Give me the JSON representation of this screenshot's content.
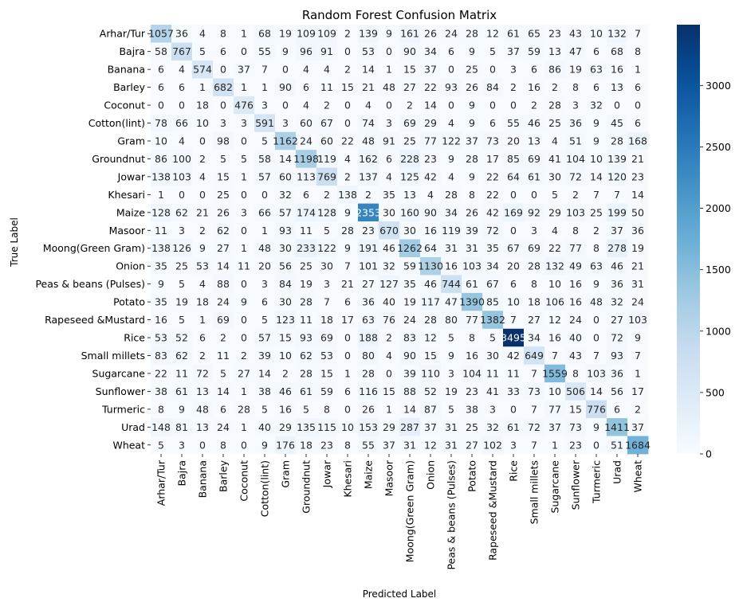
{
  "chart_data": {
    "type": "heatmap",
    "title": "Random Forest Confusion Matrix",
    "xlabel": "Predicted Label",
    "ylabel": "True Label",
    "labels": [
      "Arhar/Tur",
      "Bajra",
      "Banana",
      "Barley",
      "Coconut",
      "Cotton(lint)",
      "Gram",
      "Groundnut",
      "Jowar",
      "Khesari",
      "Maize",
      "Masoor",
      "Moong(Green Gram)",
      "Onion",
      "Peas & beans (Pulses)",
      "Potato",
      "Rapeseed &Mustard",
      "Rice",
      "Small millets",
      "Sugarcane",
      "Sunflower",
      "Turmeric",
      "Urad",
      "Wheat"
    ],
    "matrix": [
      [
        1057,
        36,
        4,
        8,
        1,
        68,
        19,
        109,
        109,
        2,
        139,
        9,
        161,
        26,
        24,
        28,
        12,
        61,
        65,
        23,
        43,
        10,
        132,
        7
      ],
      [
        58,
        767,
        5,
        6,
        0,
        55,
        9,
        96,
        91,
        0,
        53,
        0,
        90,
        34,
        6,
        9,
        5,
        37,
        59,
        13,
        47,
        6,
        68,
        8
      ],
      [
        6,
        4,
        574,
        0,
        37,
        7,
        0,
        4,
        4,
        2,
        14,
        1,
        15,
        37,
        0,
        25,
        0,
        3,
        6,
        86,
        19,
        63,
        16,
        1
      ],
      [
        6,
        6,
        1,
        682,
        1,
        1,
        90,
        6,
        11,
        15,
        21,
        48,
        27,
        22,
        93,
        26,
        84,
        2,
        16,
        2,
        8,
        6,
        13,
        6
      ],
      [
        0,
        0,
        18,
        0,
        476,
        3,
        0,
        4,
        2,
        0,
        4,
        0,
        2,
        14,
        0,
        9,
        0,
        0,
        2,
        28,
        3,
        32,
        0,
        0
      ],
      [
        78,
        66,
        10,
        3,
        3,
        591,
        3,
        60,
        67,
        0,
        74,
        3,
        69,
        29,
        4,
        9,
        6,
        55,
        46,
        25,
        36,
        9,
        45,
        6
      ],
      [
        10,
        4,
        0,
        98,
        0,
        5,
        1162,
        24,
        60,
        22,
        48,
        91,
        25,
        77,
        122,
        37,
        73,
        20,
        13,
        4,
        51,
        9,
        28,
        168
      ],
      [
        86,
        100,
        2,
        5,
        5,
        58,
        14,
        1198,
        119,
        4,
        162,
        6,
        228,
        23,
        9,
        28,
        17,
        85,
        69,
        41,
        104,
        10,
        139,
        21
      ],
      [
        138,
        103,
        4,
        15,
        1,
        57,
        60,
        113,
        769,
        2,
        137,
        4,
        125,
        42,
        4,
        9,
        22,
        64,
        61,
        30,
        72,
        14,
        120,
        23
      ],
      [
        1,
        0,
        0,
        25,
        0,
        0,
        32,
        6,
        2,
        138,
        2,
        35,
        13,
        4,
        28,
        8,
        22,
        0,
        0,
        5,
        2,
        7,
        7,
        14
      ],
      [
        128,
        62,
        21,
        26,
        3,
        66,
        57,
        174,
        128,
        9,
        2353,
        30,
        160,
        90,
        34,
        26,
        42,
        169,
        92,
        29,
        103,
        25,
        199,
        50
      ],
      [
        11,
        3,
        2,
        62,
        0,
        1,
        93,
        11,
        5,
        28,
        23,
        670,
        30,
        16,
        119,
        39,
        72,
        0,
        3,
        4,
        8,
        2,
        37,
        36
      ],
      [
        138,
        126,
        9,
        27,
        1,
        48,
        30,
        233,
        122,
        9,
        191,
        46,
        1262,
        64,
        31,
        31,
        35,
        67,
        69,
        22,
        77,
        8,
        278,
        19
      ],
      [
        35,
        25,
        53,
        14,
        11,
        20,
        56,
        25,
        30,
        7,
        101,
        32,
        59,
        1130,
        16,
        103,
        34,
        20,
        28,
        132,
        49,
        63,
        46,
        21
      ],
      [
        9,
        5,
        4,
        88,
        0,
        3,
        84,
        19,
        3,
        21,
        27,
        127,
        35,
        46,
        744,
        61,
        67,
        6,
        8,
        10,
        16,
        9,
        36,
        31
      ],
      [
        35,
        19,
        18,
        24,
        9,
        6,
        30,
        28,
        7,
        6,
        36,
        40,
        19,
        117,
        47,
        1390,
        85,
        10,
        18,
        106,
        16,
        48,
        32,
        24
      ],
      [
        16,
        5,
        1,
        69,
        0,
        5,
        123,
        11,
        18,
        17,
        63,
        76,
        24,
        28,
        80,
        77,
        1382,
        7,
        27,
        12,
        24,
        0,
        27,
        103
      ],
      [
        53,
        52,
        6,
        2,
        0,
        57,
        15,
        93,
        69,
        0,
        188,
        2,
        83,
        12,
        5,
        8,
        5,
        3495,
        34,
        16,
        40,
        0,
        72,
        9
      ],
      [
        83,
        62,
        2,
        11,
        2,
        39,
        10,
        62,
        53,
        0,
        80,
        4,
        90,
        15,
        9,
        16,
        30,
        42,
        649,
        7,
        43,
        7,
        93,
        7
      ],
      [
        22,
        11,
        72,
        5,
        27,
        14,
        2,
        28,
        15,
        1,
        28,
        0,
        39,
        110,
        3,
        104,
        11,
        11,
        7,
        1559,
        8,
        103,
        36,
        1
      ],
      [
        38,
        61,
        13,
        14,
        1,
        38,
        46,
        61,
        59,
        6,
        116,
        15,
        88,
        52,
        19,
        23,
        41,
        33,
        73,
        10,
        506,
        14,
        56,
        17
      ],
      [
        8,
        9,
        48,
        6,
        28,
        5,
        16,
        5,
        8,
        0,
        26,
        1,
        14,
        87,
        5,
        38,
        3,
        0,
        7,
        77,
        15,
        776,
        6,
        2
      ],
      [
        148,
        81,
        13,
        24,
        1,
        40,
        29,
        135,
        115,
        10,
        153,
        29,
        287,
        37,
        31,
        25,
        32,
        61,
        72,
        37,
        73,
        9,
        1411,
        37
      ],
      [
        5,
        3,
        0,
        8,
        0,
        9,
        176,
        18,
        23,
        8,
        55,
        37,
        31,
        12,
        31,
        27,
        102,
        3,
        7,
        1,
        23,
        0,
        51,
        1684
      ]
    ],
    "colorbar": {
      "colormap": "Blues",
      "vmin": 0,
      "vmax": 3495,
      "ticks": [
        0,
        500,
        1000,
        1500,
        2000,
        2500,
        3000
      ],
      "low_color": "#f7fbff",
      "high_color": "#08306b"
    },
    "annotation_colors": {
      "dark_text": "#262626",
      "light_text": "#ffffff"
    },
    "grid": false
  }
}
